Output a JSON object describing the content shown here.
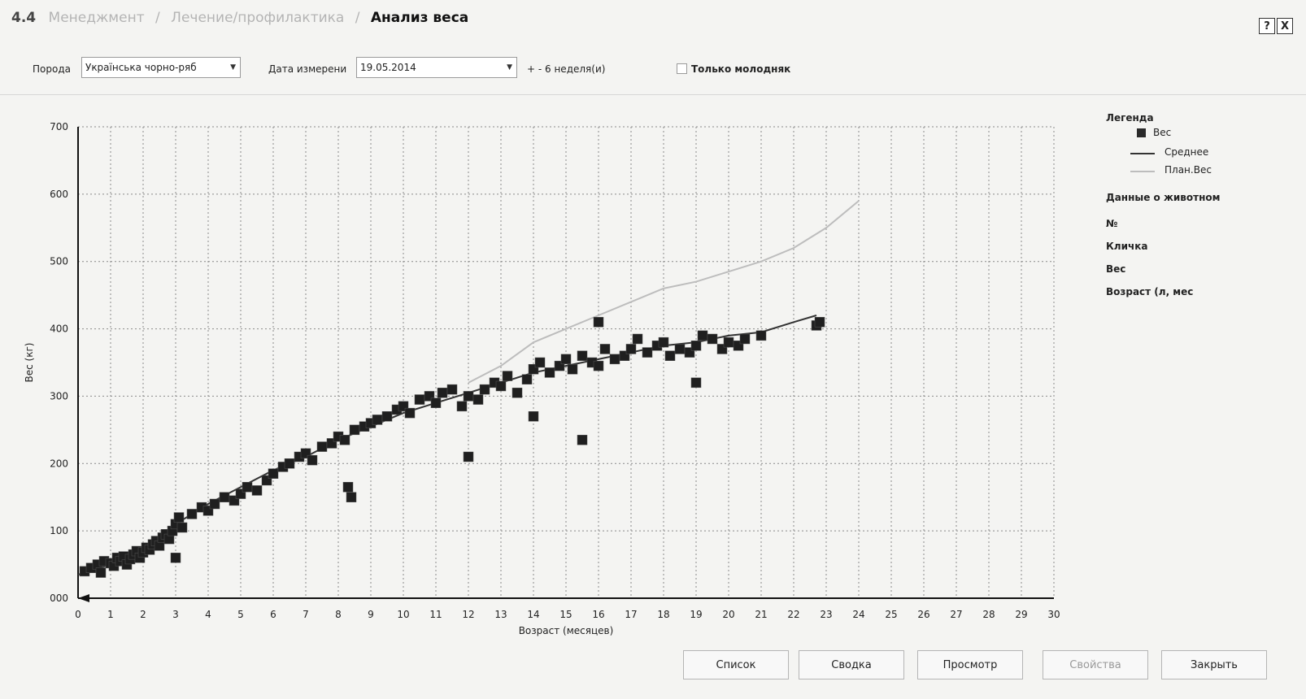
{
  "header": {
    "section_number": "4.4",
    "breadcrumb": [
      "Менеджмент",
      "Лечение/профилактика"
    ],
    "breadcrumb_sep": "/",
    "current_page": "Анализ веса",
    "help_label": "?",
    "close_label": "X"
  },
  "filters": {
    "breed_label": "Порода",
    "breed_value": "Українська чорно-ряб",
    "date_label": "Дата измерени",
    "date_value": "19.05.2014",
    "range_text": "+ - 6 неделя(и)",
    "young_only_label": "Только молодняк",
    "young_only_checked": false
  },
  "legend": {
    "title": "Легенда",
    "items": [
      {
        "symbol": "square",
        "label": "Вес"
      },
      {
        "symbol": "line-dark",
        "label": "Среднее"
      },
      {
        "symbol": "line-light",
        "label": "План.Вес"
      }
    ],
    "animal_data_title": "Данные о животном",
    "animal_fields": [
      "№",
      "Кличка",
      "Вес",
      "Возраст (л, мес"
    ]
  },
  "chart_data": {
    "type": "scatter",
    "xlabel": "Возраст (месяцев)",
    "ylabel": "Вес (кг)",
    "xlim": [
      0,
      30
    ],
    "ylim": [
      0,
      700
    ],
    "x_ticks": [
      0,
      1,
      2,
      3,
      4,
      5,
      6,
      7,
      8,
      9,
      10,
      11,
      12,
      13,
      14,
      15,
      16,
      17,
      18,
      19,
      20,
      21,
      22,
      23,
      24,
      25,
      26,
      27,
      28,
      29,
      30
    ],
    "y_ticks": [
      "000",
      "100",
      "200",
      "300",
      "400",
      "500",
      "600",
      "700"
    ],
    "y_tick_values": [
      0,
      100,
      200,
      300,
      400,
      500,
      600,
      700
    ],
    "grid": true,
    "legend_position": "right",
    "series": [
      {
        "name": "Вес",
        "kind": "scatter",
        "color": "#1f1f1f",
        "points": [
          [
            0.2,
            40
          ],
          [
            0.4,
            45
          ],
          [
            0.6,
            50
          ],
          [
            0.7,
            38
          ],
          [
            0.8,
            55
          ],
          [
            1.0,
            52
          ],
          [
            1.1,
            48
          ],
          [
            1.2,
            60
          ],
          [
            1.3,
            55
          ],
          [
            1.4,
            62
          ],
          [
            1.5,
            50
          ],
          [
            1.6,
            58
          ],
          [
            1.7,
            65
          ],
          [
            1.8,
            70
          ],
          [
            1.9,
            60
          ],
          [
            2.0,
            68
          ],
          [
            2.1,
            75
          ],
          [
            2.2,
            72
          ],
          [
            2.3,
            80
          ],
          [
            2.4,
            85
          ],
          [
            2.5,
            78
          ],
          [
            2.6,
            90
          ],
          [
            2.7,
            95
          ],
          [
            2.8,
            88
          ],
          [
            2.9,
            100
          ],
          [
            3.0,
            110
          ],
          [
            3.0,
            60
          ],
          [
            3.1,
            120
          ],
          [
            3.2,
            105
          ],
          [
            3.5,
            125
          ],
          [
            3.8,
            135
          ],
          [
            4.0,
            130
          ],
          [
            4.2,
            140
          ],
          [
            4.5,
            150
          ],
          [
            4.8,
            145
          ],
          [
            5.0,
            155
          ],
          [
            5.2,
            165
          ],
          [
            5.5,
            160
          ],
          [
            5.8,
            175
          ],
          [
            6.0,
            185
          ],
          [
            6.3,
            195
          ],
          [
            6.5,
            200
          ],
          [
            6.8,
            210
          ],
          [
            7.0,
            215
          ],
          [
            7.2,
            205
          ],
          [
            7.5,
            225
          ],
          [
            7.8,
            230
          ],
          [
            8.0,
            240
          ],
          [
            8.2,
            235
          ],
          [
            8.3,
            165
          ],
          [
            8.4,
            150
          ],
          [
            8.5,
            250
          ],
          [
            8.8,
            255
          ],
          [
            9.0,
            260
          ],
          [
            9.2,
            265
          ],
          [
            9.5,
            270
          ],
          [
            9.8,
            280
          ],
          [
            10.0,
            285
          ],
          [
            10.2,
            275
          ],
          [
            10.5,
            295
          ],
          [
            10.8,
            300
          ],
          [
            11.0,
            290
          ],
          [
            11.2,
            305
          ],
          [
            11.5,
            310
          ],
          [
            11.8,
            285
          ],
          [
            12.0,
            300
          ],
          [
            12.0,
            210
          ],
          [
            12.3,
            295
          ],
          [
            12.5,
            310
          ],
          [
            12.8,
            320
          ],
          [
            13.0,
            315
          ],
          [
            13.2,
            330
          ],
          [
            13.5,
            305
          ],
          [
            13.8,
            325
          ],
          [
            14.0,
            340
          ],
          [
            14.0,
            270
          ],
          [
            14.2,
            350
          ],
          [
            14.5,
            335
          ],
          [
            14.8,
            345
          ],
          [
            15.0,
            355
          ],
          [
            15.2,
            340
          ],
          [
            15.5,
            360
          ],
          [
            15.5,
            235
          ],
          [
            15.8,
            350
          ],
          [
            16.0,
            345
          ],
          [
            16.0,
            410
          ],
          [
            16.2,
            370
          ],
          [
            16.5,
            355
          ],
          [
            16.8,
            360
          ],
          [
            17.0,
            370
          ],
          [
            17.2,
            385
          ],
          [
            17.5,
            365
          ],
          [
            17.8,
            375
          ],
          [
            18.0,
            380
          ],
          [
            18.2,
            360
          ],
          [
            18.5,
            370
          ],
          [
            18.8,
            365
          ],
          [
            19.0,
            375
          ],
          [
            19.0,
            320
          ],
          [
            19.2,
            390
          ],
          [
            19.5,
            385
          ],
          [
            19.8,
            370
          ],
          [
            20.0,
            380
          ],
          [
            20.3,
            375
          ],
          [
            20.5,
            385
          ],
          [
            21.0,
            390
          ],
          [
            22.7,
            405
          ],
          [
            22.8,
            410
          ]
        ]
      },
      {
        "name": "Среднее",
        "kind": "line",
        "color": "#333333",
        "points": [
          [
            0,
            35
          ],
          [
            1,
            50
          ],
          [
            2,
            75
          ],
          [
            3,
            110
          ],
          [
            4,
            140
          ],
          [
            5,
            165
          ],
          [
            6,
            190
          ],
          [
            7,
            210
          ],
          [
            8,
            235
          ],
          [
            9,
            255
          ],
          [
            10,
            275
          ],
          [
            11,
            290
          ],
          [
            12,
            305
          ],
          [
            13,
            320
          ],
          [
            14,
            335
          ],
          [
            15,
            345
          ],
          [
            16,
            355
          ],
          [
            17,
            365
          ],
          [
            18,
            375
          ],
          [
            19,
            380
          ],
          [
            20,
            390
          ],
          [
            21,
            395
          ],
          [
            22,
            410
          ],
          [
            22.7,
            420
          ]
        ]
      },
      {
        "name": "План.Вес",
        "kind": "line",
        "color": "#bdbdbd",
        "points": [
          [
            12,
            320
          ],
          [
            13,
            345
          ],
          [
            14,
            380
          ],
          [
            15,
            400
          ],
          [
            16,
            420
          ],
          [
            17,
            440
          ],
          [
            18,
            460
          ],
          [
            19,
            470
          ],
          [
            20,
            485
          ],
          [
            21,
            500
          ],
          [
            22,
            520
          ],
          [
            23,
            550
          ],
          [
            24,
            590
          ]
        ]
      }
    ]
  },
  "buttons": [
    {
      "label": "Список",
      "enabled": true
    },
    {
      "label": "Сводка",
      "enabled": true
    },
    {
      "label": "Просмотр",
      "enabled": true
    },
    {
      "label": "Свойства",
      "enabled": false
    },
    {
      "label": "Закрыть",
      "enabled": true
    }
  ]
}
